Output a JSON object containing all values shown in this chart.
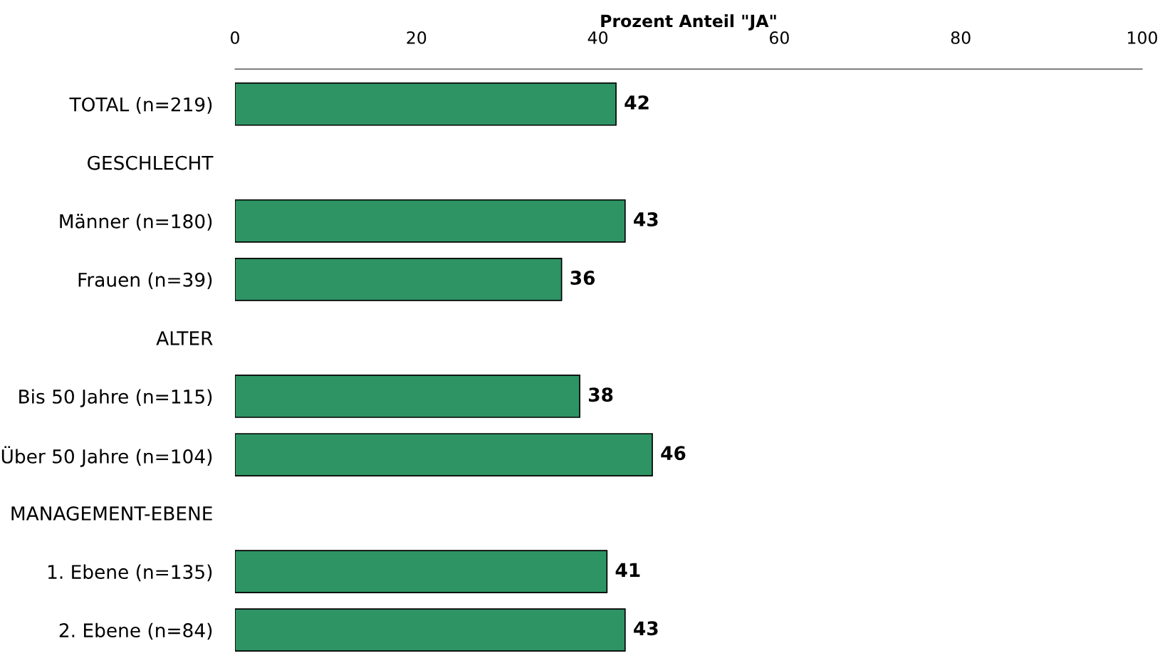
{
  "chart_data": {
    "type": "bar",
    "orientation": "horizontal",
    "xlabel": "Prozent Anteil \"JA\"",
    "categories": [
      "TOTAL (n=219)",
      "GESCHLECHT",
      "Männer (n=180)",
      "Frauen (n=39)",
      "ALTER",
      "Bis 50 Jahre (n=115)",
      "Über 50 Jahre (n=104)",
      "MANAGEMENT-EBENE",
      "1. Ebene (n=135)",
      "2. Ebene (n=84)"
    ],
    "values": [
      42,
      null,
      43,
      36,
      null,
      38,
      46,
      null,
      41,
      43
    ],
    "color": "#2e9464",
    "xlim": [
      0,
      100
    ],
    "xticks": [
      0,
      20,
      40,
      60,
      80,
      100
    ],
    "data_labels": true,
    "grid": false,
    "legend": false
  }
}
